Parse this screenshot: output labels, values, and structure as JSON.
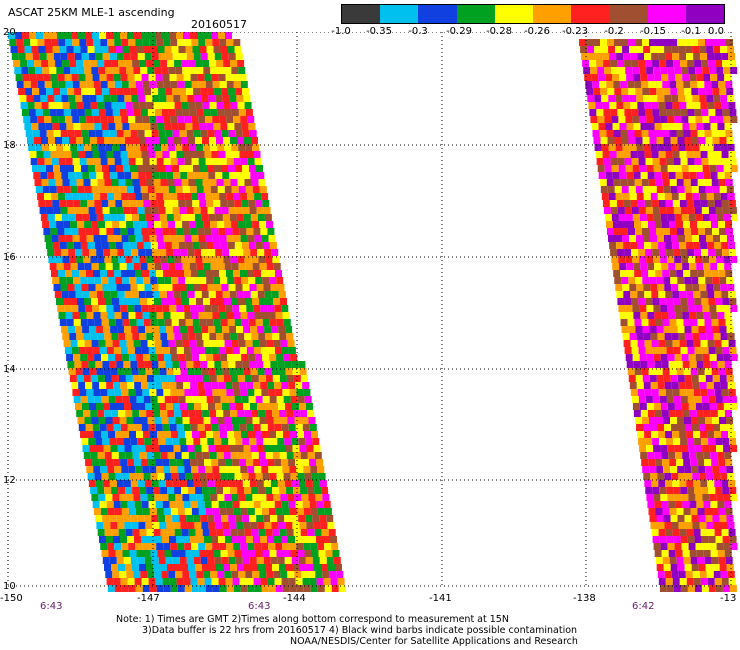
{
  "header": {
    "title": "ASCAT 25KM MLE-1 ascending",
    "date": "20160517"
  },
  "colorbar": {
    "labels": [
      "-1.0",
      "-0.35",
      "-0.3",
      "-0.29",
      "-0.28",
      "-0.26",
      "-0.23",
      "-0.2",
      "-0.15",
      "-0.1",
      "0.0"
    ],
    "colors": [
      "#3a3a3a",
      "#00c0f0",
      "#1040e0",
      "#00a020",
      "#ffff00",
      "#ffa000",
      "#ff2020",
      "#a05030",
      "#ff00ff",
      "#9000c0"
    ]
  },
  "axes": {
    "lat_labels": [
      "20",
      "18",
      "16",
      "14",
      "12",
      "10"
    ],
    "lon_labels": [
      "-150",
      "-147",
      "-144",
      "-141",
      "-138",
      "-13"
    ],
    "time_labels": [
      "6:43",
      "6:43",
      "6:42"
    ]
  },
  "notes": [
    "Note: 1) Times are GMT 2)Times along bottom correspond to measurement at 15N",
    "3)Data buffer is 22 hrs from 20160517 4) Black wind barbs indicate possible contamination",
    "NOAA/NESDIS/Center for Satellite Applications and Research"
  ]
}
